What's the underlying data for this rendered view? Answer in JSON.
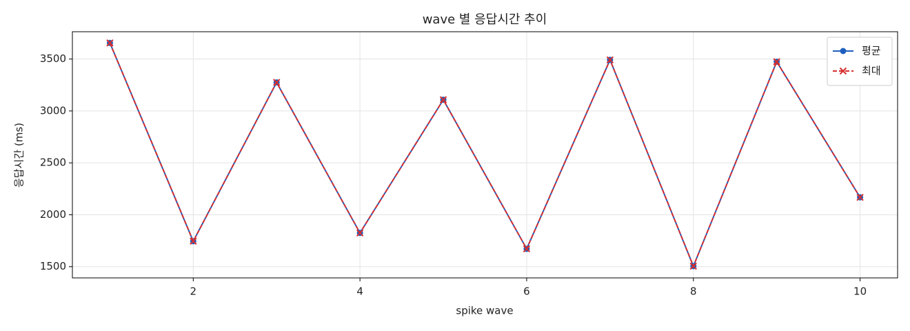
{
  "chart_data": {
    "type": "line",
    "title": "wave 별 응답시간 추이",
    "x_label": "spike wave",
    "y_label": "응답시간 (ms)",
    "x": [
      1,
      2,
      3,
      4,
      5,
      6,
      7,
      8,
      9,
      10
    ],
    "series": [
      {
        "name": "평균",
        "color": "#1f5fbf",
        "marker": "o",
        "dashed": false,
        "values": [
          3655,
          1745,
          3275,
          1825,
          3108,
          1672,
          3492,
          1505,
          3474,
          2168
        ]
      },
      {
        "name": "최대",
        "color": "#d62f2f",
        "marker": "x",
        "dashed": true,
        "values": [
          3655,
          1745,
          3275,
          1825,
          3108,
          1672,
          3492,
          1505,
          3474,
          2168
        ]
      }
    ],
    "xlim": [
      0.55,
      10.45
    ],
    "ylim": [
      1392,
      3763
    ],
    "xticks": [
      2,
      4,
      6,
      8,
      10
    ],
    "yticks": [
      1500,
      2000,
      2500,
      3000,
      3500
    ],
    "grid": true,
    "legend": "upper right"
  }
}
